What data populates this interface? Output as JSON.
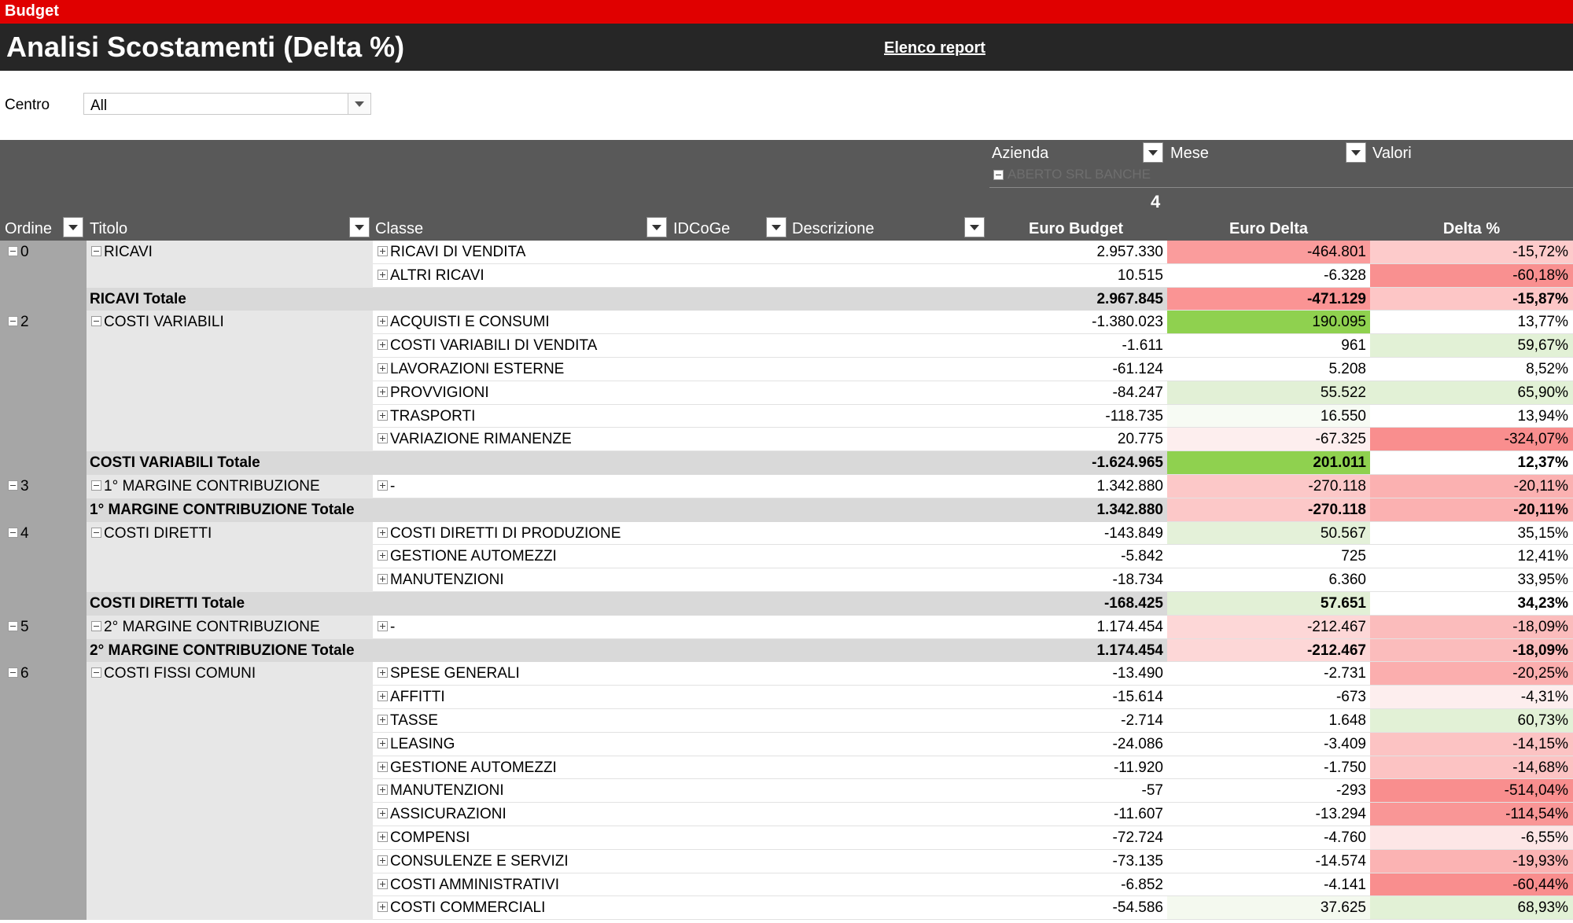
{
  "app_label": "Budget",
  "page_title": "Analisi Scostamenti (Delta %)",
  "report_link": "Elenco report",
  "filter": {
    "label": "Centro",
    "value": "All"
  },
  "pivot_header": {
    "azienda_label": "Azienda",
    "mese_label": "Mese",
    "valori_label": "Valori",
    "company_faded": "ABERTO SRL BANCHE",
    "month": "4",
    "col_ordine": "Ordine",
    "col_titolo": "Titolo",
    "col_classe": "Classe",
    "col_idcoge": "IDCoGe",
    "col_descrizione": "Descrizione",
    "col_budget": "Euro Budget",
    "col_delta": "Euro Delta",
    "col_pct": "Delta %"
  },
  "rows": [
    {
      "ord": "0",
      "tit": "RICAVI",
      "cls": "RICAVI DI VENDITA",
      "bud": "2.957.330",
      "del": "-464.801",
      "pct": "-15,72%",
      "dc": "#fa9c9c",
      "pc": "#fdcbcb"
    },
    {
      "ord": "",
      "tit": "",
      "cls": "ALTRI RICAVI",
      "bud": "10.515",
      "del": "-6.328",
      "pct": "-60,18%",
      "dc": "#ffffff",
      "pc": "#f99090"
    },
    {
      "total": true,
      "tit": "RICAVI Totale",
      "bud": "2.967.845",
      "del": "-471.129",
      "pct": "-15,87%",
      "dc": "#fa9494",
      "pc": "#fdc6c6"
    },
    {
      "ord": "2",
      "tit": "COSTI VARIABILI",
      "cls": "ACQUISTI E CONSUMI",
      "bud": "-1.380.023",
      "del": "190.095",
      "pct": "13,77%",
      "dc": "#8fd14f",
      "pc": "#ffffff"
    },
    {
      "ord": "",
      "tit": "",
      "cls": "COSTI VARIABILI DI VENDITA",
      "bud": "-1.611",
      "del": "961",
      "pct": "59,67%",
      "dc": "#ffffff",
      "pc": "#e2f1d6"
    },
    {
      "ord": "",
      "tit": "",
      "cls": "LAVORAZIONI ESTERNE",
      "bud": "-61.124",
      "del": "5.208",
      "pct": "8,52%",
      "dc": "#ffffff",
      "pc": "#ffffff"
    },
    {
      "ord": "",
      "tit": "",
      "cls": "PROVVIGIONI",
      "bud": "-84.247",
      "del": "55.522",
      "pct": "65,90%",
      "dc": "#e2f0d6",
      "pc": "#e2f1d6"
    },
    {
      "ord": "",
      "tit": "",
      "cls": "TRASPORTI",
      "bud": "-118.735",
      "del": "16.550",
      "pct": "13,94%",
      "dc": "#f7fbf4",
      "pc": "#ffffff"
    },
    {
      "ord": "",
      "tit": "",
      "cls": "VARIAZIONE RIMANENZE",
      "bud": "20.775",
      "del": "-67.325",
      "pct": "-324,07%",
      "dc": "#fdeeee",
      "pc": "#f98e8e"
    },
    {
      "total": true,
      "tit": "COSTI VARIABILI Totale",
      "bud": "-1.624.965",
      "del": "201.011",
      "pct": "12,37%",
      "dc": "#8fd14f",
      "pc": "#ffffff"
    },
    {
      "ord": "3",
      "tit": "1° MARGINE CONTRIBUZIONE",
      "cls": "-",
      "bud": "1.342.880",
      "del": "-270.118",
      "pct": "-20,11%",
      "dc": "#fcc8c8",
      "pc": "#fbb1b1"
    },
    {
      "total": true,
      "tit": "1° MARGINE CONTRIBUZIONE Totale",
      "bud": "1.342.880",
      "del": "-270.118",
      "pct": "-20,11%",
      "dc": "#fcc8c8",
      "pc": "#fbb1b1"
    },
    {
      "ord": "4",
      "tit": "COSTI DIRETTI",
      "cls": "COSTI DIRETTI DI PRODUZIONE",
      "bud": "-143.849",
      "del": "50.567",
      "pct": "35,15%",
      "dc": "#e4f1d9",
      "pc": "#ffffff"
    },
    {
      "ord": "",
      "tit": "",
      "cls": "GESTIONE AUTOMEZZI",
      "bud": "-5.842",
      "del": "725",
      "pct": "12,41%",
      "dc": "#ffffff",
      "pc": "#ffffff"
    },
    {
      "ord": "",
      "tit": "",
      "cls": "MANUTENZIONI",
      "bud": "-18.734",
      "del": "6.360",
      "pct": "33,95%",
      "dc": "#ffffff",
      "pc": "#ffffff"
    },
    {
      "total": true,
      "tit": "COSTI DIRETTI Totale",
      "bud": "-168.425",
      "del": "57.651",
      "pct": "34,23%",
      "dc": "#e2f0d6",
      "pc": "#ffffff"
    },
    {
      "ord": "5",
      "tit": "2° MARGINE CONTRIBUZIONE",
      "cls": "-",
      "bud": "1.174.454",
      "del": "-212.467",
      "pct": "-18,09%",
      "dc": "#fdd7d7",
      "pc": "#fbbcbc"
    },
    {
      "total": true,
      "tit": "2° MARGINE CONTRIBUZIONE Totale",
      "bud": "1.174.454",
      "del": "-212.467",
      "pct": "-18,09%",
      "dc": "#fdd7d7",
      "pc": "#fbbcbc"
    },
    {
      "ord": "6",
      "tit": "COSTI FISSI COMUNI",
      "cls": "SPESE GENERALI",
      "bud": "-13.490",
      "del": "-2.731",
      "pct": "-20,25%",
      "dc": "#ffffff",
      "pc": "#fbaeae"
    },
    {
      "ord": "",
      "tit": "",
      "cls": "AFFITTI",
      "bud": "-15.614",
      "del": "-673",
      "pct": "-4,31%",
      "dc": "#ffffff",
      "pc": "#fdeeee"
    },
    {
      "ord": "",
      "tit": "",
      "cls": "TASSE",
      "bud": "-2.714",
      "del": "1.648",
      "pct": "60,73%",
      "dc": "#ffffff",
      "pc": "#e2f1d6"
    },
    {
      "ord": "",
      "tit": "",
      "cls": "LEASING",
      "bud": "-24.086",
      "del": "-3.409",
      "pct": "-14,15%",
      "dc": "#ffffff",
      "pc": "#fcc3c3"
    },
    {
      "ord": "",
      "tit": "",
      "cls": "GESTIONE AUTOMEZZI",
      "bud": "-11.920",
      "del": "-1.750",
      "pct": "-14,68%",
      "dc": "#ffffff",
      "pc": "#fcc3c3"
    },
    {
      "ord": "",
      "tit": "",
      "cls": "MANUTENZIONI",
      "bud": "-57",
      "del": "-293",
      "pct": "-514,04%",
      "dc": "#ffffff",
      "pc": "#f98e8e"
    },
    {
      "ord": "",
      "tit": "",
      "cls": "ASSICURAZIONI",
      "bud": "-11.607",
      "del": "-13.294",
      "pct": "-114,54%",
      "dc": "#ffffff",
      "pc": "#f99696"
    },
    {
      "ord": "",
      "tit": "",
      "cls": "COMPENSI",
      "bud": "-72.724",
      "del": "-4.760",
      "pct": "-6,55%",
      "dc": "#ffffff",
      "pc": "#fde6e6"
    },
    {
      "ord": "",
      "tit": "",
      "cls": "CONSULENZE E SERVIZI",
      "bud": "-73.135",
      "del": "-14.574",
      "pct": "-19,93%",
      "dc": "#ffffff",
      "pc": "#fbb3b3"
    },
    {
      "ord": "",
      "tit": "",
      "cls": "COSTI AMMINISTRATIVI",
      "bud": "-6.852",
      "del": "-4.141",
      "pct": "-60,44%",
      "dc": "#ffffff",
      "pc": "#f98e8e"
    },
    {
      "ord": "",
      "tit": "",
      "cls": "COSTI COMMERCIALI",
      "bud": "-54.586",
      "del": "37.625",
      "pct": "68,93%",
      "dc": "#f4f9ef",
      "pc": "#e2f1d6"
    }
  ]
}
